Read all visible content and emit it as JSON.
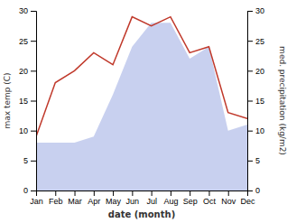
{
  "chart_data": {
    "type": "line",
    "categories": [
      "Jan",
      "Feb",
      "Mar",
      "Apr",
      "May",
      "Jun",
      "Jul",
      "Aug",
      "Sep",
      "Oct",
      "Nov",
      "Dec"
    ],
    "series": [
      {
        "type": "area",
        "axis": "y2",
        "color": "#b0bce8",
        "values": [
          8,
          8,
          8,
          9,
          16,
          24,
          28,
          28,
          22,
          24,
          10,
          11
        ]
      },
      {
        "type": "line",
        "color": "#c0392b",
        "values": [
          9,
          18,
          20,
          23,
          21,
          29,
          27.5,
          29,
          23,
          24,
          13,
          12
        ]
      }
    ],
    "xlabel": "date (month)",
    "ylabel": "max temp (C)",
    "y2label": "med. precipitation (kg/m2)",
    "ylim": [
      0,
      30
    ],
    "yticks": [
      0,
      5,
      10,
      15,
      20,
      25,
      30
    ],
    "y2lim": [
      0,
      30
    ],
    "y2ticks": [
      0,
      5,
      10,
      15,
      20,
      25,
      30
    ],
    "grid": false
  }
}
